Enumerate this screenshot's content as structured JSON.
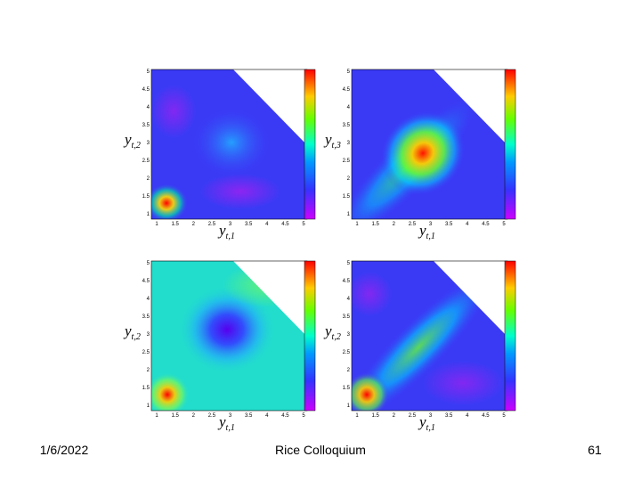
{
  "panels": [
    {
      "x_label": {
        "var": "y",
        "sub": "t,1"
      },
      "y_label": {
        "var": "y",
        "sub": "t,2"
      }
    },
    {
      "x_label": {
        "var": "y",
        "sub": "t,1"
      },
      "y_label": {
        "var": "y",
        "sub": "t,3"
      }
    },
    {
      "x_label": {
        "var": "y",
        "sub": "t,1"
      },
      "y_label": {
        "var": "y",
        "sub": "t,2"
      }
    },
    {
      "x_label": {
        "var": "y",
        "sub": "t,1"
      },
      "y_label": {
        "var": "y",
        "sub": "t,2"
      }
    }
  ],
  "ticks": {
    "x": [
      "1",
      "1.5",
      "2",
      "2.5",
      "3",
      "3.5",
      "4",
      "4.5",
      "5"
    ],
    "y": [
      "1",
      "1.5",
      "2",
      "2.5",
      "3",
      "3.5",
      "4",
      "4.5",
      "5"
    ]
  },
  "footer": {
    "date": "1/6/2022",
    "title": "Rice Colloquium",
    "page": "61"
  }
}
